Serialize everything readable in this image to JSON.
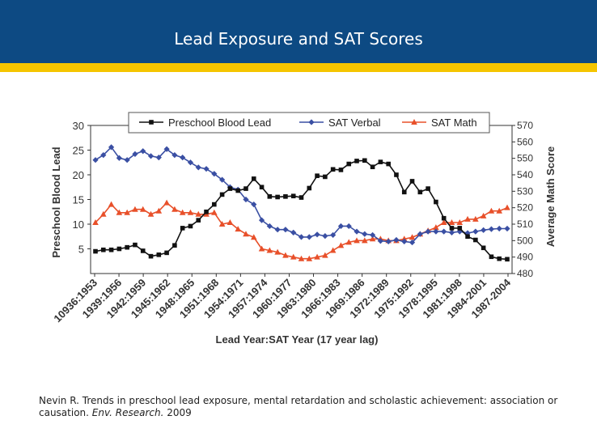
{
  "slide": {
    "title": "Lead Exposure and SAT Scores",
    "colors": {
      "title_bar": "#0d4a83",
      "accent_bar": "#f5c500"
    }
  },
  "caption": {
    "text_before": "Nevin R. Trends in preschool lead exposure, mental retardation and scholastic achievement: association or causation.",
    "journal": "Env. Research.",
    "year": "2009"
  },
  "chart_data": {
    "type": "line",
    "xlabel": "Lead Year:SAT Year (17 year lag)",
    "ylabel_left": "Preschool Blood Lead",
    "ylabel_right": "Average Math Score",
    "ylim_left": [
      0,
      30
    ],
    "yticks_left": [
      5,
      10,
      15,
      20,
      25,
      30
    ],
    "ylim_right": [
      480,
      570
    ],
    "yticks_right": [
      480,
      490,
      500,
      510,
      520,
      530,
      540,
      550,
      560,
      570
    ],
    "x_tick_labels": [
      "10936:1953",
      "1939:1956",
      "1942:1959",
      "1945:1962",
      "1948:1965",
      "1951:1968",
      "1954:1971",
      "1957:1974",
      "1960:1977",
      "1963:1980",
      "1966:1983",
      "1969:1986",
      "1972:1989",
      "1975:1992",
      "1978:1995",
      "1981:1998",
      "1984-2001",
      "1987-2004"
    ],
    "legend": [
      "Preschool Blood Lead",
      "SAT Verbal",
      "SAT Math"
    ],
    "series": [
      {
        "name": "Preschool Blood Lead",
        "axis": "left",
        "marker": "square",
        "color": "#111111",
        "values": [
          4.5,
          4.8,
          4.8,
          5.0,
          5.3,
          5.8,
          4.6,
          3.5,
          3.8,
          4.2,
          5.7,
          9.2,
          9.6,
          10.8,
          12.5,
          14.0,
          16.0,
          17.2,
          16.8,
          17.2,
          19.2,
          17.5,
          15.6,
          15.5,
          15.6,
          15.7,
          15.4,
          17.3,
          19.8,
          19.6,
          21.1,
          21.0,
          22.2,
          22.8,
          22.9,
          21.6,
          22.6,
          22.2,
          20.0,
          16.5,
          18.7,
          16.5,
          17.2,
          14.5,
          11.2,
          9.2,
          9.2,
          7.5,
          6.8,
          5.2,
          3.4,
          3.0,
          2.9
        ]
      },
      {
        "name": "SAT Verbal",
        "axis": "left",
        "marker": "diamond",
        "color": "#3a4fa3",
        "values": [
          23.0,
          24.0,
          25.6,
          23.4,
          23.0,
          24.2,
          24.8,
          23.8,
          23.5,
          25.2,
          24.0,
          23.5,
          22.5,
          21.5,
          21.2,
          20.2,
          19.0,
          17.5,
          17.0,
          15.0,
          14.0,
          10.8,
          9.6,
          8.9,
          8.9,
          8.3,
          7.4,
          7.4,
          7.9,
          7.6,
          7.8,
          9.6,
          9.6,
          8.5,
          8.0,
          7.8,
          6.6,
          6.5,
          6.8,
          6.5,
          6.3,
          8.0,
          8.5,
          8.5,
          8.5,
          8.3,
          8.5,
          8.2,
          8.5,
          8.8,
          9.0,
          9.1,
          9.1
        ]
      },
      {
        "name": "SAT Math",
        "axis": "right",
        "marker": "triangle",
        "color": "#e8502a",
        "values": [
          511,
          516,
          522,
          517,
          517,
          519,
          519,
          516,
          518,
          523,
          519,
          517,
          517,
          516,
          516,
          517,
          510,
          511,
          507,
          504,
          502,
          495,
          494,
          493,
          491,
          490,
          489,
          489,
          490,
          491,
          494,
          497,
          499,
          500,
          500,
          501,
          501,
          500,
          500,
          501,
          502,
          504,
          506,
          508,
          511,
          511,
          511,
          513,
          513,
          515,
          518,
          518,
          520
        ]
      }
    ]
  }
}
